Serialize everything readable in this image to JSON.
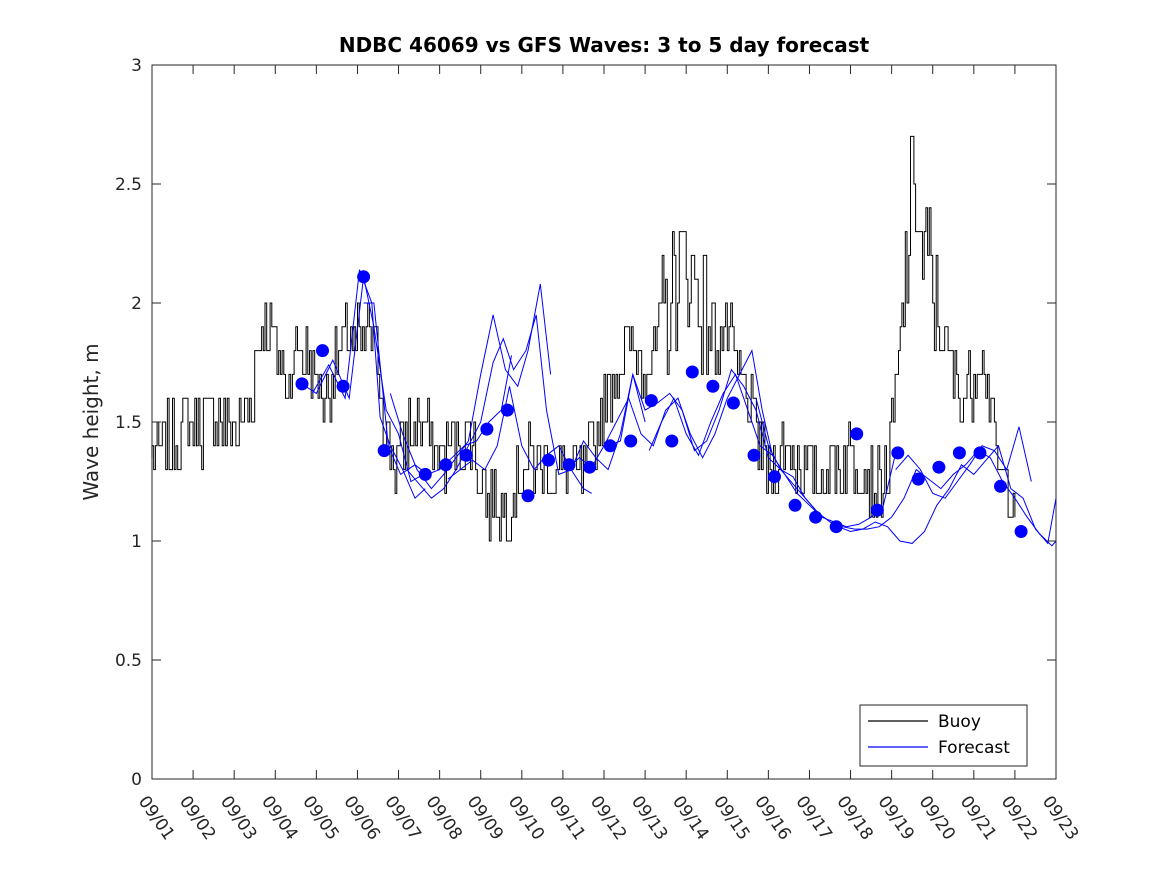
{
  "chart_data": {
    "type": "line",
    "title": "NDBC 46069 vs GFS Waves: 3 to 5 day forecast",
    "xlabel": "",
    "ylabel": "Wave height, m",
    "x_unit": "days since 09/01",
    "xlim": [
      0,
      22
    ],
    "ylim": [
      0,
      3
    ],
    "yticks": [
      0,
      0.5,
      1,
      1.5,
      2,
      2.5,
      3
    ],
    "ytick_labels": [
      "0",
      "0.5",
      "1",
      "1.5",
      "2",
      "2.5",
      "3"
    ],
    "xtick_labels": [
      "09/01",
      "09/02",
      "09/03",
      "09/04",
      "09/05",
      "09/06",
      "09/07",
      "09/08",
      "09/09",
      "09/10",
      "09/11",
      "09/12",
      "09/13",
      "09/14",
      "09/15",
      "09/16",
      "09/17",
      "09/18",
      "09/19",
      "09/20",
      "09/21",
      "09/22",
      "09/23"
    ],
    "grid": false,
    "legend_position": "bottom-right",
    "legend": [
      {
        "name": "Buoy",
        "color": "#000000"
      },
      {
        "name": "Forecast",
        "color": "#0000ff"
      }
    ],
    "buoy_anchors": [
      [
        0.0,
        1.35
      ],
      [
        0.3,
        1.4
      ],
      [
        0.6,
        1.45
      ],
      [
        0.9,
        1.5
      ],
      [
        1.2,
        1.48
      ],
      [
        1.5,
        1.52
      ],
      [
        1.8,
        1.5
      ],
      [
        2.1,
        1.45
      ],
      [
        2.4,
        1.6
      ],
      [
        2.6,
        1.85
      ],
      [
        2.8,
        1.9
      ],
      [
        3.0,
        1.8
      ],
      [
        3.3,
        1.65
      ],
      [
        3.6,
        1.85
      ],
      [
        3.9,
        1.7
      ],
      [
        4.2,
        1.6
      ],
      [
        4.5,
        1.75
      ],
      [
        4.8,
        1.9
      ],
      [
        5.1,
        1.8
      ],
      [
        5.3,
        1.9
      ],
      [
        5.5,
        1.75
      ],
      [
        5.7,
        1.45
      ],
      [
        5.9,
        1.3
      ],
      [
        6.2,
        1.45
      ],
      [
        6.5,
        1.5
      ],
      [
        6.8,
        1.4
      ],
      [
        7.1,
        1.35
      ],
      [
        7.4,
        1.4
      ],
      [
        7.7,
        1.45
      ],
      [
        8.0,
        1.3
      ],
      [
        8.2,
        1.15
      ],
      [
        8.4,
        1.2
      ],
      [
        8.6,
        1.1
      ],
      [
        8.9,
        1.3
      ],
      [
        9.2,
        1.35
      ],
      [
        9.5,
        1.3
      ],
      [
        9.8,
        1.3
      ],
      [
        10.1,
        1.3
      ],
      [
        10.4,
        1.25
      ],
      [
        10.7,
        1.35
      ],
      [
        11.0,
        1.6
      ],
      [
        11.3,
        1.7
      ],
      [
        11.6,
        1.8
      ],
      [
        11.9,
        1.75
      ],
      [
        12.2,
        1.8
      ],
      [
        12.5,
        1.95
      ],
      [
        12.8,
        2.15
      ],
      [
        13.1,
        2.15
      ],
      [
        13.4,
        2.0
      ],
      [
        13.7,
        1.85
      ],
      [
        14.0,
        1.85
      ],
      [
        14.3,
        1.7
      ],
      [
        14.6,
        1.55
      ],
      [
        14.8,
        1.4
      ],
      [
        15.0,
        1.3
      ],
      [
        15.2,
        1.3
      ],
      [
        15.4,
        1.4
      ],
      [
        15.6,
        1.35
      ],
      [
        15.9,
        1.3
      ],
      [
        16.2,
        1.25
      ],
      [
        16.5,
        1.3
      ],
      [
        16.8,
        1.35
      ],
      [
        17.1,
        1.35
      ],
      [
        17.4,
        1.3
      ],
      [
        17.7,
        1.2
      ],
      [
        17.9,
        1.3
      ],
      [
        18.1,
        1.6
      ],
      [
        18.3,
        2.0
      ],
      [
        18.45,
        2.4
      ],
      [
        18.55,
        2.6
      ],
      [
        18.7,
        2.2
      ],
      [
        18.9,
        2.15
      ],
      [
        19.1,
        1.9
      ],
      [
        19.3,
        1.85
      ],
      [
        19.5,
        1.7
      ],
      [
        19.7,
        1.6
      ],
      [
        19.9,
        1.65
      ],
      [
        20.1,
        1.8
      ],
      [
        20.3,
        1.75
      ],
      [
        20.5,
        1.4
      ],
      [
        20.7,
        1.2
      ],
      [
        20.9,
        1.25
      ],
      [
        21.0,
        1.2
      ]
    ],
    "forecast_markers": {
      "x": [
        3.65,
        4.15,
        4.65,
        5.15,
        5.65,
        6.65,
        7.15,
        7.65,
        8.15,
        8.65,
        9.15,
        9.65,
        10.15,
        10.65,
        11.15,
        11.65,
        12.15,
        12.65,
        13.15,
        13.65,
        14.15,
        14.65,
        15.15,
        15.65,
        16.15,
        16.65,
        17.15,
        17.65,
        18.15,
        18.65,
        19.15,
        19.65,
        20.15,
        20.65,
        21.15
      ],
      "y": [
        1.66,
        1.8,
        1.65,
        2.11,
        1.38,
        1.28,
        1.32,
        1.36,
        1.47,
        1.55,
        1.19,
        1.34,
        1.32,
        1.31,
        1.4,
        1.42,
        1.59,
        1.42,
        1.71,
        1.65,
        1.58,
        1.36,
        1.27,
        1.15,
        1.1,
        1.06,
        1.45,
        1.13,
        1.37,
        1.26,
        1.31,
        1.37,
        1.37,
        1.23,
        1.04
      ]
    },
    "forecast_series": [
      {
        "x": [
          3.65,
          4.0,
          4.4,
          4.8,
          5.15,
          5.4,
          5.7,
          6.0,
          6.3,
          6.6
        ],
        "y": [
          1.66,
          1.62,
          1.76,
          1.6,
          2.11,
          1.9,
          1.55,
          1.45,
          1.25,
          1.28
        ]
      },
      {
        "x": [
          3.9,
          4.3,
          4.7,
          5.05,
          5.35,
          5.55,
          5.8,
          6.1,
          6.4,
          6.65
        ],
        "y": [
          1.62,
          1.74,
          1.6,
          2.14,
          2.0,
          1.52,
          1.4,
          1.3,
          1.18,
          1.22
        ]
      },
      {
        "x": [
          5.15,
          5.4,
          5.75,
          6.05,
          6.4,
          6.7,
          7.0,
          7.3,
          7.6,
          7.9,
          8.2,
          8.5,
          8.75
        ],
        "y": [
          2.0,
          2.0,
          1.4,
          1.28,
          1.32,
          1.28,
          1.3,
          1.35,
          1.4,
          1.42,
          1.5,
          1.55,
          1.78
        ]
      },
      {
        "x": [
          5.8,
          6.1,
          6.45,
          6.8,
          7.1,
          7.4,
          7.7,
          8.0,
          8.3,
          8.6,
          8.9,
          9.15,
          9.45,
          9.7
        ],
        "y": [
          1.62,
          1.45,
          1.3,
          1.22,
          1.28,
          1.35,
          1.42,
          1.7,
          1.95,
          1.72,
          1.65,
          1.8,
          2.08,
          1.7
        ]
      },
      {
        "x": [
          6.2,
          6.5,
          6.8,
          7.1,
          7.4,
          7.7,
          8.0,
          8.3,
          8.55,
          8.8,
          9.1,
          9.35,
          9.6,
          9.9,
          10.2,
          10.5,
          10.7
        ],
        "y": [
          1.3,
          1.24,
          1.18,
          1.22,
          1.3,
          1.4,
          1.5,
          1.75,
          1.85,
          1.72,
          1.8,
          1.95,
          1.55,
          1.28,
          1.3,
          1.22,
          1.2
        ]
      },
      {
        "x": [
          7.2,
          7.5,
          7.8,
          8.1,
          8.4,
          8.7,
          9.0,
          9.3,
          9.6,
          9.9,
          10.2,
          10.5,
          10.8,
          11.1,
          11.4,
          11.7,
          12.0
        ],
        "y": [
          1.26,
          1.3,
          1.34,
          1.3,
          1.4,
          1.65,
          1.4,
          1.3,
          1.36,
          1.4,
          1.3,
          1.42,
          1.35,
          1.3,
          1.45,
          1.7,
          1.5
        ]
      },
      {
        "x": [
          10.1,
          10.4,
          10.7,
          11.0,
          11.3,
          11.6,
          11.9,
          12.2,
          12.5,
          12.8,
          13.1,
          13.4,
          13.7,
          14.0,
          14.3,
          14.6,
          14.85,
          15.1
        ],
        "y": [
          1.3,
          1.35,
          1.31,
          1.4,
          1.5,
          1.6,
          1.45,
          1.4,
          1.55,
          1.6,
          1.45,
          1.35,
          1.45,
          1.6,
          1.7,
          1.8,
          1.55,
          1.36
        ]
      },
      {
        "x": [
          11.1,
          11.4,
          11.7,
          12.0,
          12.3,
          12.6,
          12.9,
          13.2,
          13.5,
          13.8,
          14.1,
          14.4,
          14.7,
          15.0,
          15.3,
          15.6,
          15.9,
          16.2
        ],
        "y": [
          1.4,
          1.42,
          1.7,
          1.55,
          1.58,
          1.62,
          1.55,
          1.38,
          1.42,
          1.55,
          1.72,
          1.65,
          1.55,
          1.35,
          1.3,
          1.27,
          1.18,
          1.12
        ]
      },
      {
        "x": [
          12.1,
          12.4,
          12.7,
          13.0,
          13.3,
          13.6,
          13.9,
          14.2,
          14.5,
          14.8,
          15.1,
          15.4,
          15.7,
          16.0,
          16.3,
          16.6,
          16.9,
          17.2,
          17.5,
          17.8,
          18.1
        ],
        "y": [
          1.38,
          1.5,
          1.6,
          1.45,
          1.36,
          1.5,
          1.62,
          1.7,
          1.55,
          1.4,
          1.36,
          1.28,
          1.2,
          1.15,
          1.1,
          1.08,
          1.06,
          1.07,
          1.1,
          1.15,
          1.37
        ]
      },
      {
        "x": [
          14.7,
          15.0,
          15.3,
          15.6,
          15.9,
          16.2,
          16.5,
          16.8,
          17.1,
          17.4,
          17.7,
          18.0,
          18.3,
          18.6,
          18.9,
          19.2,
          19.5,
          19.8,
          20.1,
          20.4,
          20.7,
          21.0,
          21.3,
          21.6,
          21.9,
          22.0
        ],
        "y": [
          1.6,
          1.4,
          1.3,
          1.24,
          1.18,
          1.12,
          1.08,
          1.06,
          1.05,
          1.05,
          1.06,
          1.1,
          1.18,
          1.3,
          1.26,
          1.22,
          1.28,
          1.32,
          1.38,
          1.35,
          1.25,
          1.18,
          1.1,
          1.03,
          0.98,
          1.0
        ]
      },
      {
        "x": [
          16.7,
          17.0,
          17.3,
          17.6,
          17.9,
          18.2,
          18.5,
          18.8,
          19.1,
          19.4,
          19.7,
          20.0,
          20.3,
          20.6,
          20.9,
          21.2,
          21.5,
          21.8,
          22.0
        ],
        "y": [
          1.06,
          1.04,
          1.05,
          1.08,
          1.06,
          1.0,
          0.99,
          1.04,
          1.15,
          1.22,
          1.32,
          1.28,
          1.34,
          1.4,
          1.22,
          1.18,
          1.05,
          0.99,
          1.18
        ]
      },
      {
        "x": [
          18.1,
          18.4,
          18.7,
          19.0,
          19.3,
          19.6,
          19.9,
          20.2,
          20.5,
          20.8,
          21.1,
          21.4
        ],
        "y": [
          1.3,
          1.36,
          1.3,
          1.2,
          1.18,
          1.25,
          1.32,
          1.4,
          1.38,
          1.3,
          1.48,
          1.25
        ]
      }
    ]
  }
}
